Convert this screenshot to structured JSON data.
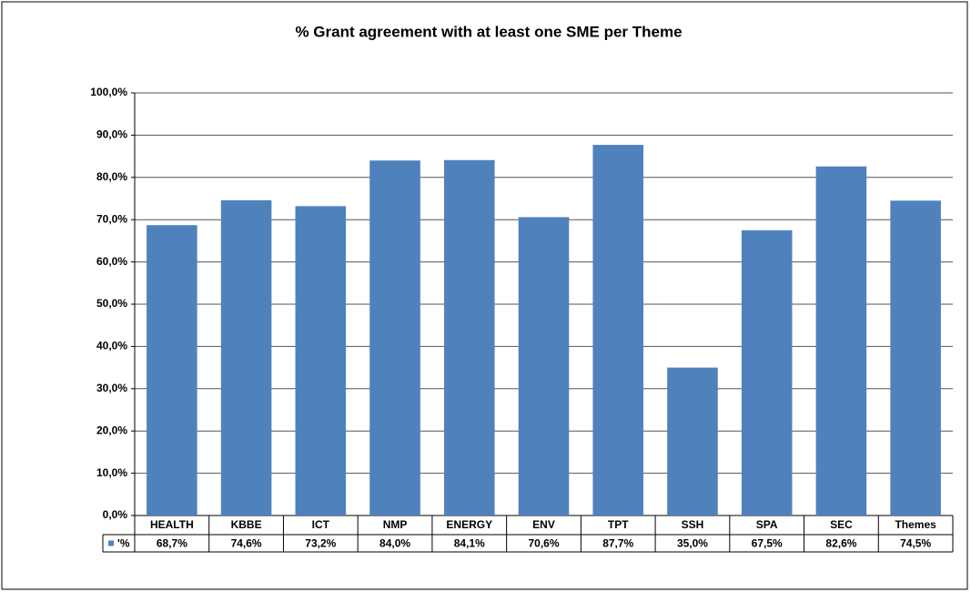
{
  "chart_data": {
    "type": "bar",
    "title": "% Grant agreement with at least one SME per Theme",
    "categories": [
      "HEALTH",
      "KBBE",
      "ICT",
      "NMP",
      "ENERGY",
      "ENV",
      "TPT",
      "SSH",
      "SPA",
      "SEC",
      "Themes"
    ],
    "series": [
      {
        "name": "'%",
        "color": "#4f81bd",
        "values": [
          68.7,
          74.6,
          73.2,
          84.0,
          84.1,
          70.6,
          87.7,
          35.0,
          67.5,
          82.6,
          74.5
        ],
        "value_labels": [
          "68,7%",
          "74,6%",
          "73,2%",
          "84,0%",
          "84,1%",
          "70,6%",
          "87,7%",
          "35,0%",
          "67,5%",
          "82,6%",
          "74,5%"
        ]
      }
    ],
    "ylim": [
      0,
      100
    ],
    "yticks": [
      {
        "value": 0,
        "label": "0,0%"
      },
      {
        "value": 10,
        "label": "10,0%"
      },
      {
        "value": 20,
        "label": "20,0%"
      },
      {
        "value": 30,
        "label": "30,0%"
      },
      {
        "value": 40,
        "label": "40,0%"
      },
      {
        "value": 50,
        "label": "50,0%"
      },
      {
        "value": 60,
        "label": "60,0%"
      },
      {
        "value": 70,
        "label": "70,0%"
      },
      {
        "value": 80,
        "label": "80,0%"
      },
      {
        "value": 90,
        "label": "90,0%"
      },
      {
        "value": 100,
        "label": "100,0%"
      }
    ],
    "grid": true
  }
}
